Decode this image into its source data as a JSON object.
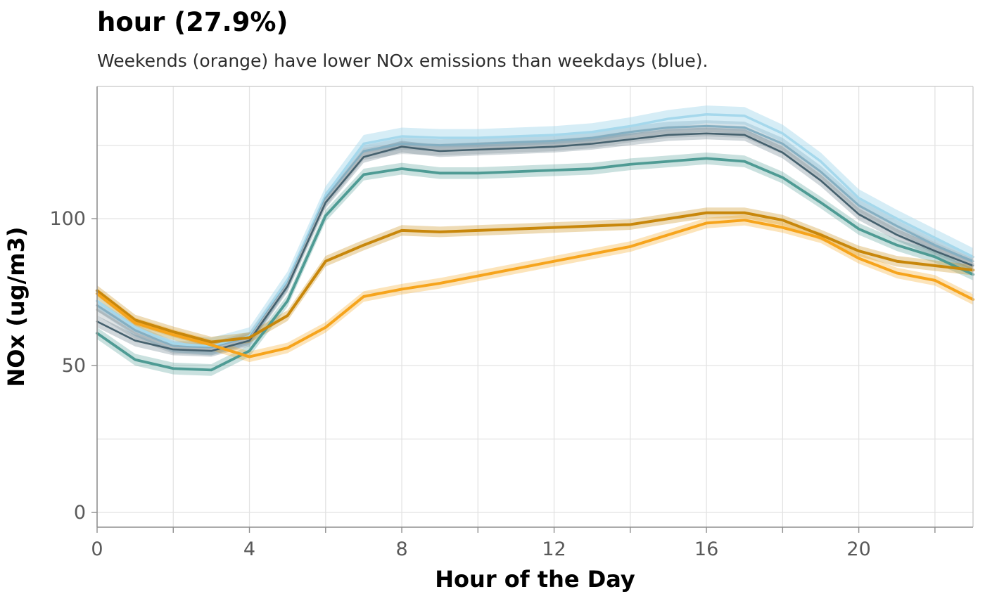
{
  "title": "hour (27.9%)",
  "subtitle": "Weekends (orange) have lower NOx emissions than weekdays (blue).",
  "chart_data": {
    "type": "line",
    "title": "hour (27.9%)",
    "subtitle": "Weekends (orange) have lower NOx emissions than weekdays (blue).",
    "xlabel": "Hour of the Day",
    "ylabel": "NOx (ug/m3)",
    "xlim": [
      0,
      23
    ],
    "ylim": [
      -5,
      145
    ],
    "grid": true,
    "legend": "none",
    "x_tick_labels": [
      "0",
      "4",
      "8",
      "12",
      "16",
      "20"
    ],
    "x_ticks_labeled": [
      0,
      4,
      8,
      12,
      16,
      20
    ],
    "x_gridlines": [
      2,
      4,
      6,
      8,
      10,
      12,
      14,
      16,
      18,
      20,
      22
    ],
    "y_tick_labels": [
      "0",
      "50",
      "100"
    ],
    "y_ticks_labeled": [
      0,
      50,
      100
    ],
    "y_gridlines": [
      0,
      25,
      50,
      75,
      100,
      125
    ],
    "x": [
      0,
      1,
      2,
      3,
      4,
      5,
      6,
      7,
      8,
      9,
      10,
      11,
      12,
      13,
      14,
      15,
      16,
      17,
      18,
      19,
      20,
      21,
      22,
      23
    ],
    "series": [
      {
        "name": "weekday-light-blue",
        "color": "#A5D8EC",
        "band_opacity": 0.45,
        "band": 3,
        "width": 3.5,
        "values": [
          72,
          63,
          57.5,
          56.5,
          60,
          79,
          108,
          125.5,
          128,
          127.5,
          127.5,
          128,
          128.5,
          129.5,
          131.5,
          134,
          135.5,
          135,
          129,
          119.5,
          107,
          100,
          93.5,
          87
        ]
      },
      {
        "name": "weekday-steel-blue",
        "color": "#84AFC2",
        "band_opacity": 0.35,
        "band": 2,
        "width": 3,
        "values": [
          70.5,
          62,
          56.5,
          56,
          59.5,
          78,
          107,
          123,
          125.5,
          125,
          125.5,
          126,
          126.5,
          127.5,
          129.5,
          131,
          131.5,
          131,
          125.5,
          116,
          104.5,
          97.5,
          91,
          85.5
        ]
      },
      {
        "name": "weekday-gray",
        "color": "#AEB9BE",
        "band_opacity": 0.4,
        "band": 2,
        "width": 3,
        "values": [
          69,
          61,
          56,
          55.5,
          59,
          77.5,
          106,
          122,
          124,
          123.5,
          124,
          124.5,
          125,
          126,
          128,
          129.5,
          130,
          129.5,
          124,
          114.5,
          103,
          96,
          90,
          84.5
        ]
      },
      {
        "name": "weekday-dark-slate",
        "color": "#45616E",
        "band_opacity": 0.25,
        "band": 2,
        "width": 2.6,
        "values": [
          65,
          58.5,
          55.5,
          55,
          58.5,
          77,
          105.5,
          121,
          124.5,
          123,
          123.5,
          124,
          124.5,
          125.5,
          127,
          128.5,
          129,
          128.5,
          122.5,
          113,
          101.5,
          94.5,
          89,
          84
        ]
      },
      {
        "name": "weekday-teal",
        "color": "#4E9B94",
        "band_opacity": 0.3,
        "band": 2,
        "width": 3.8,
        "values": [
          61,
          52,
          49,
          48.5,
          55,
          72,
          101,
          115,
          117,
          115.5,
          115.5,
          116,
          116.5,
          117,
          118.5,
          119.5,
          120.5,
          119.5,
          114,
          105.5,
          96.5,
          91,
          87,
          81
        ]
      },
      {
        "name": "weekend-dark-orange",
        "color": "#C8870B",
        "band_opacity": 0.3,
        "band": 1.8,
        "width": 4,
        "values": [
          75.5,
          65.5,
          61.5,
          58,
          59.5,
          67,
          85.5,
          91,
          96,
          95.5,
          96,
          96.5,
          97,
          97.5,
          98,
          100,
          102,
          102,
          99.5,
          94.5,
          89,
          85.5,
          84,
          82.5
        ]
      },
      {
        "name": "weekend-orange",
        "color": "#F6A41C",
        "band_opacity": 0.3,
        "band": 1.8,
        "width": 4,
        "values": [
          74.5,
          64.5,
          60.5,
          57,
          53,
          56,
          63,
          73.5,
          76,
          78,
          80.5,
          83,
          85.5,
          88,
          90.5,
          94.5,
          98.5,
          99.5,
          97,
          93.5,
          86.5,
          81.5,
          79,
          72.5
        ]
      }
    ],
    "colors": {
      "grid": "#E3E3E3",
      "spine_main": "#8f8f8f",
      "spine_minor": "#c6c6c6",
      "tick": "#8f8f8f",
      "tick_label": "#595959",
      "title": "#000000",
      "subtitle": "#2e2e2e"
    }
  }
}
